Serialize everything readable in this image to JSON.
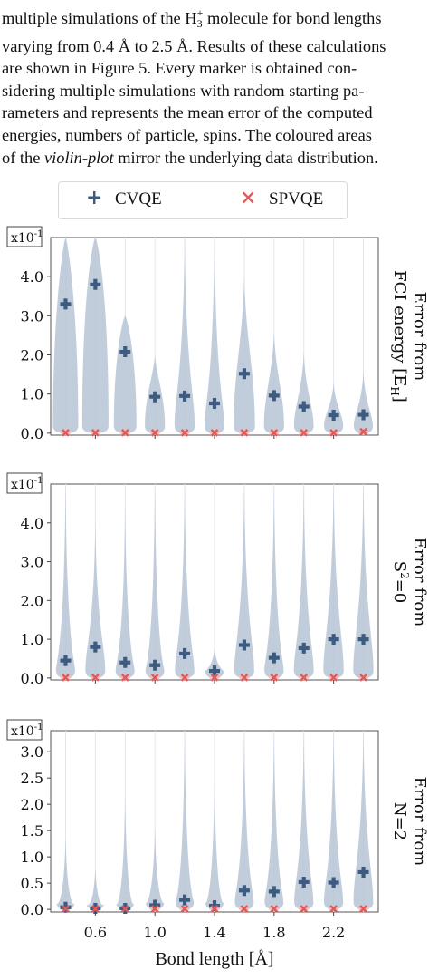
{
  "paragraph": {
    "line1_pre": "multiple simulations of the H",
    "line1_sub": "3",
    "line1_sup": "+",
    "line1_post": " molecule for bond lengths",
    "line2": "varying from 0.4 Å to 2.5 Å. Results of these calculations",
    "line3": "are shown in Figure 5. Every marker is obtained con-",
    "line4": "sidering multiple simulations with random starting pa-",
    "line5": "rameters and represents the mean error of the computed",
    "line6": "energies, numbers of particle, spins. The coloured areas",
    "line7_pre": "of the ",
    "line7_em": "violin-plot",
    "line7_post": " mirror the underlying data distribution."
  },
  "legend": {
    "cvqe_label": "CVQE",
    "spvqe_label": "SPVQE",
    "cvqe_marker": "+",
    "spvqe_marker": "×"
  },
  "colors": {
    "cvqe": "#3d5a80",
    "spvqe": "#e05a5a",
    "violin_fill": "#b7c4d6",
    "spvqe_violin": "#f2b8b8"
  },
  "x_axis": {
    "label": "Bond length [Å]",
    "ticks": [
      0.6,
      1.0,
      1.4,
      1.8,
      2.2
    ],
    "tick_labels": [
      "0.6",
      "1.0",
      "1.4",
      "1.8",
      "2.2"
    ]
  },
  "chart_data": [
    {
      "type": "violin",
      "multiplier": "x10-1",
      "ylabel_lines": [
        "Error from",
        "FCI energy [E",
        "H",
        "]"
      ],
      "ylim": [
        -0.05,
        5.0
      ],
      "yticks": [
        0.0,
        1.0,
        2.0,
        3.0,
        4.0
      ],
      "ytick_labels": [
        "0.0",
        "1.0",
        "2.0",
        "3.0",
        "4.0"
      ],
      "x": [
        0.4,
        0.6,
        0.8,
        1.0,
        1.2,
        1.4,
        1.6,
        1.8,
        2.0,
        2.2,
        2.4
      ],
      "series": [
        {
          "name": "CVQE",
          "values": [
            3.3,
            3.8,
            2.08,
            0.93,
            0.95,
            0.76,
            1.52,
            0.96,
            0.68,
            0.46,
            0.47
          ],
          "violin_max": [
            5.0,
            5.0,
            3.0,
            2.0,
            5.0,
            5.0,
            4.0,
            2.6,
            2.1,
            1.3,
            1.6
          ]
        },
        {
          "name": "SPVQE",
          "values": [
            0.01,
            0.01,
            0.01,
            0.01,
            0.01,
            0.01,
            0.01,
            0.01,
            0.01,
            0.01,
            0.04
          ]
        }
      ]
    },
    {
      "type": "violin",
      "multiplier": "x10-1",
      "ylabel_lines": [
        "Error from",
        "S",
        "2",
        "=0"
      ],
      "ylim": [
        -0.05,
        5.0
      ],
      "yticks": [
        0.0,
        1.0,
        2.0,
        3.0,
        4.0
      ],
      "ytick_labels": [
        "0.0",
        "1.0",
        "2.0",
        "3.0",
        "4.0"
      ],
      "x": [
        0.4,
        0.6,
        0.8,
        1.0,
        1.2,
        1.4,
        1.6,
        1.8,
        2.0,
        2.2,
        2.4
      ],
      "series": [
        {
          "name": "CVQE",
          "values": [
            0.45,
            0.8,
            0.4,
            0.33,
            0.63,
            0.18,
            0.85,
            0.52,
            0.77,
            1.0,
            1.0
          ],
          "violin_max": [
            5.0,
            4.0,
            4.5,
            5.0,
            5.0,
            0.8,
            5.0,
            5.0,
            5.0,
            5.0,
            5.0
          ]
        },
        {
          "name": "SPVQE",
          "values": [
            0.01,
            0.01,
            0.01,
            0.01,
            0.01,
            0.01,
            0.01,
            0.01,
            0.01,
            0.01,
            0.01
          ]
        }
      ]
    },
    {
      "type": "violin",
      "multiplier": "x10-1",
      "ylabel_lines": [
        "Error from",
        "N=2"
      ],
      "ylim": [
        -0.05,
        3.4
      ],
      "yticks": [
        0.0,
        0.5,
        1.0,
        1.5,
        2.0,
        2.5,
        3.0
      ],
      "ytick_labels": [
        "0.0",
        "0.5",
        "1.0",
        "1.5",
        "2.0",
        "2.5",
        "3.0"
      ],
      "x": [
        0.4,
        0.6,
        0.8,
        1.0,
        1.2,
        1.4,
        1.6,
        1.8,
        2.0,
        2.2,
        2.4
      ],
      "series": [
        {
          "name": "CVQE",
          "values": [
            0.04,
            0.02,
            0.02,
            0.08,
            0.18,
            0.07,
            0.36,
            0.34,
            0.52,
            0.51,
            0.71
          ],
          "violin_max": [
            1.4,
            0.8,
            2.2,
            1.6,
            3.4,
            2.5,
            3.4,
            3.4,
            3.4,
            3.4,
            3.4
          ]
        },
        {
          "name": "SPVQE",
          "values": [
            0.01,
            0.01,
            0.01,
            0.01,
            0.01,
            0.01,
            0.01,
            0.01,
            0.01,
            0.01,
            0.01
          ]
        }
      ]
    }
  ]
}
